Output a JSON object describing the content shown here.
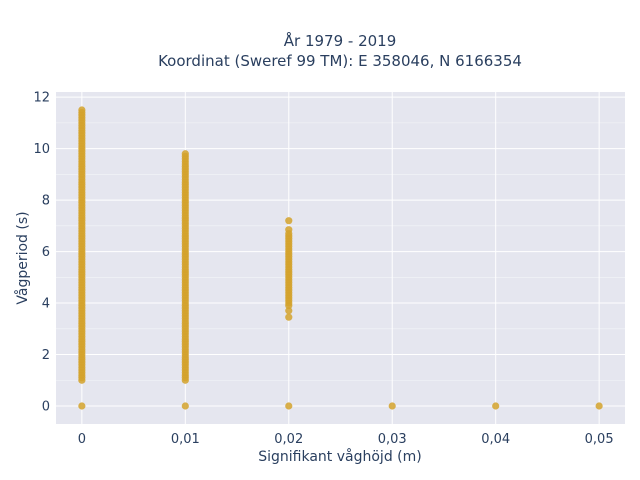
{
  "chart_data": {
    "type": "scatter",
    "title_line1": "År 1979 - 2019",
    "title_line2": "Koordinat (Sweref 99 TM): E 358046, N 6166354",
    "xlabel": "Signifikant våghöjd (m)",
    "ylabel": "Vågperiod (s)",
    "xlim": [
      -0.0025,
      0.0525
    ],
    "ylim": [
      -0.7,
      12.2
    ],
    "x_ticks": [
      {
        "value": 0,
        "label": "0"
      },
      {
        "value": 0.01,
        "label": "0,01"
      },
      {
        "value": 0.02,
        "label": "0,02"
      },
      {
        "value": 0.03,
        "label": "0,03"
      },
      {
        "value": 0.04,
        "label": "0,04"
      },
      {
        "value": 0.05,
        "label": "0,05"
      }
    ],
    "y_ticks": [
      {
        "value": 0,
        "label": "0"
      },
      {
        "value": 2,
        "label": "2"
      },
      {
        "value": 4,
        "label": "4"
      },
      {
        "value": 6,
        "label": "6"
      },
      {
        "value": 8,
        "label": "8"
      },
      {
        "value": 10,
        "label": "10"
      },
      {
        "value": 12,
        "label": "12"
      }
    ],
    "grid": true,
    "colors": {
      "marker": "#d4a22b",
      "plot_bg": "#e5e6ef",
      "grid": "#ffffff",
      "text": "#2a3f5f"
    },
    "clusters": [
      {
        "x": 0,
        "y_min": 1.0,
        "y_max": 11.5,
        "extra_y": [
          0
        ]
      },
      {
        "x": 0.01,
        "y_min": 1.0,
        "y_max": 9.8,
        "extra_y": [
          0
        ]
      },
      {
        "x": 0.02,
        "y_min": 3.9,
        "y_max": 6.7,
        "extra_y": [
          0,
          3.45,
          3.7,
          6.85,
          7.2
        ]
      },
      {
        "x": 0.03,
        "y_min": null,
        "y_max": null,
        "extra_y": [
          0
        ]
      },
      {
        "x": 0.04,
        "y_min": null,
        "y_max": null,
        "extra_y": [
          0
        ]
      },
      {
        "x": 0.05,
        "y_min": null,
        "y_max": null,
        "extra_y": [
          0
        ]
      }
    ]
  }
}
